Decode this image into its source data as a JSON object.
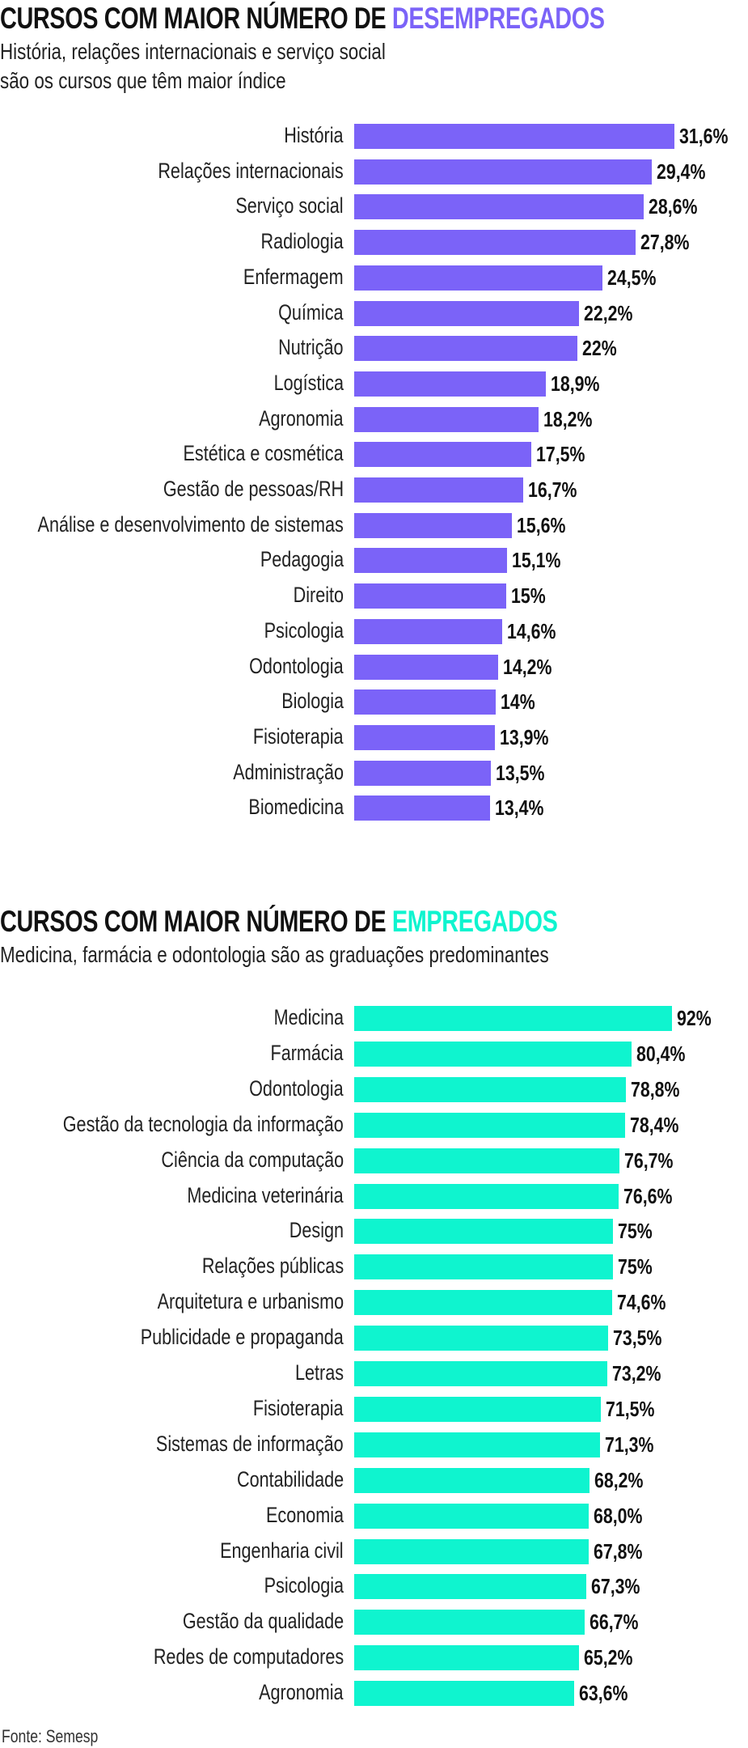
{
  "colors": {
    "unemployed": "#7b63f8",
    "employed": "#0ff4cf"
  },
  "chart_data": [
    {
      "type": "bar",
      "orientation": "horizontal",
      "title_prefix": "CURSOS COM MAIOR NÚMERO DE ",
      "title_highlight": "DESEMPREGADOS",
      "subtitle_lines": [
        "História, relações internacionais e serviço social",
        "são os cursos que têm maior índice"
      ],
      "categories": [
        "História",
        "Relações internacionais",
        "Serviço social",
        "Radiologia",
        "Enfermagem",
        "Química",
        "Nutrição",
        "Logística",
        "Agronomia",
        "Estética e cosmética",
        "Gestão de pessoas/RH",
        "Análise e desenvolvimento de sistemas",
        "Pedagogia",
        "Direito",
        "Psicologia",
        "Odontologia",
        "Biologia",
        "Fisioterapia",
        "Administração",
        "Biomedicina"
      ],
      "values": [
        31.6,
        29.4,
        28.6,
        27.8,
        24.5,
        22.2,
        22,
        18.9,
        18.2,
        17.5,
        16.7,
        15.6,
        15.1,
        15,
        14.6,
        14.2,
        14,
        13.9,
        13.5,
        13.4
      ],
      "value_labels": [
        "31,6%",
        "29,4%",
        "28,6%",
        "27,8%",
        "24,5%",
        "22,2%",
        "22%",
        "18,9%",
        "18,2%",
        "17,5%",
        "16,7%",
        "15,6%",
        "15,1%",
        "15%",
        "14,6%",
        "14,2%",
        "14%",
        "13,9%",
        "13,5%",
        "13,4%"
      ],
      "unit": "%"
    },
    {
      "type": "bar",
      "orientation": "horizontal",
      "title_prefix": "CURSOS COM MAIOR NÚMERO DE ",
      "title_highlight": "EMPREGADOS",
      "subtitle_lines": [
        "Medicina, farmácia e odontologia são as graduações predominantes"
      ],
      "categories": [
        "Medicina",
        "Farmácia",
        "Odontologia",
        "Gestão da tecnologia da informação",
        "Ciência da computação",
        "Medicina veterinária",
        "Design",
        "Relações públicas",
        "Arquitetura e urbanismo",
        "Publicidade e propaganda",
        "Letras",
        "Fisioterapia",
        "Sistemas de informação",
        "Contabilidade",
        "Economia",
        "Engenharia civil",
        "Psicologia",
        "Gestão da qualidade",
        "Redes de computadores",
        "Agronomia"
      ],
      "values": [
        92,
        80.4,
        78.8,
        78.4,
        76.7,
        76.6,
        75,
        75,
        74.6,
        73.5,
        73.2,
        71.5,
        71.3,
        68.2,
        68.0,
        67.8,
        67.3,
        66.7,
        65.2,
        63.6
      ],
      "value_labels": [
        "92%",
        "80,4%",
        "78,8%",
        "78,4%",
        "76,7%",
        "76,6%",
        "75%",
        "75%",
        "74,6%",
        "73,5%",
        "73,2%",
        "71,5%",
        "71,3%",
        "68,2%",
        "68,0%",
        "67,8%",
        "67,3%",
        "66,7%",
        "65,2%",
        "63,6%"
      ],
      "unit": "%"
    }
  ],
  "source": "Fonte: Semesp"
}
